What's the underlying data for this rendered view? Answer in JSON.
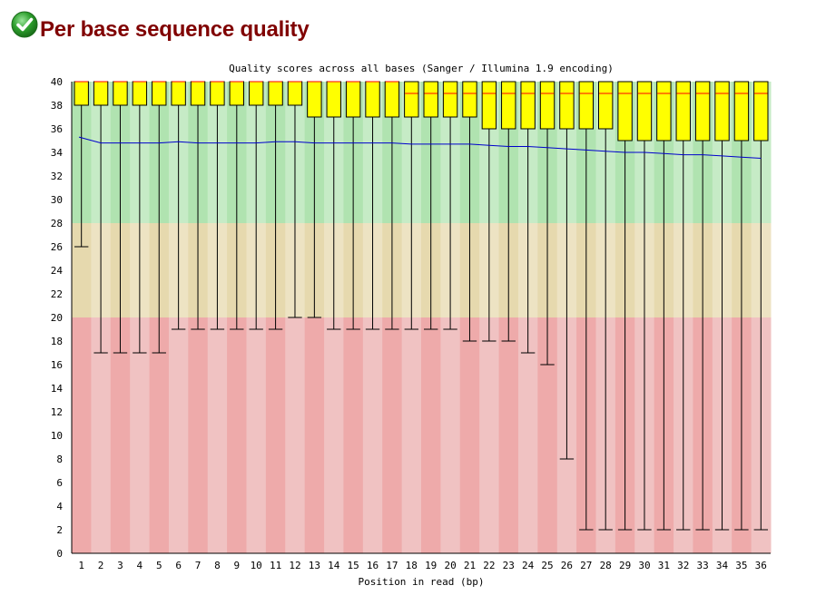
{
  "header": {
    "title": "Per base sequence quality",
    "status_icon": "pass-check-icon",
    "status_color": "#2ea02e"
  },
  "chart_data": {
    "type": "boxplot",
    "title": "Quality scores across all bases (Sanger / Illumina 1.9 encoding)",
    "xlabel": "Position in read (bp)",
    "ylabel": "",
    "ylim": [
      0,
      40
    ],
    "yticks": [
      0,
      2,
      4,
      6,
      8,
      10,
      12,
      14,
      16,
      18,
      20,
      22,
      24,
      26,
      28,
      30,
      32,
      34,
      36,
      38,
      40
    ],
    "categories": [
      "1",
      "2",
      "3",
      "4",
      "5",
      "6",
      "7",
      "8",
      "9",
      "10",
      "11",
      "12",
      "13",
      "14",
      "15",
      "16",
      "17",
      "18",
      "19",
      "20",
      "21",
      "22",
      "23",
      "24",
      "25",
      "26",
      "27",
      "28",
      "29",
      "30",
      "31",
      "32",
      "33",
      "34",
      "35",
      "36"
    ],
    "quality_bands": [
      {
        "name": "good",
        "from": 28,
        "to": 40,
        "color_a": "#b0e3b0",
        "color_b": "#c6ebc6"
      },
      {
        "name": "reasonable",
        "from": 20,
        "to": 28,
        "color_a": "#e6d9ae",
        "color_b": "#ede3c3"
      },
      {
        "name": "poor",
        "from": 0,
        "to": 20,
        "color_a": "#eeaaaa",
        "color_b": "#f0c2c2"
      }
    ],
    "series": [
      {
        "name": "10th percentile",
        "values": [
          26,
          17,
          17,
          17,
          17,
          19,
          19,
          19,
          19,
          19,
          19,
          20,
          20,
          19,
          19,
          19,
          19,
          19,
          19,
          19,
          18,
          18,
          18,
          17,
          16,
          8,
          2,
          2,
          2,
          2,
          2,
          2,
          2,
          2,
          2,
          2
        ]
      },
      {
        "name": "lower quartile",
        "values": [
          38,
          38,
          38,
          38,
          38,
          38,
          38,
          38,
          38,
          38,
          38,
          38,
          37,
          37,
          37,
          37,
          37,
          37,
          37,
          37,
          37,
          36,
          36,
          36,
          36,
          36,
          36,
          36,
          35,
          35,
          35,
          35,
          35,
          35,
          35,
          35
        ]
      },
      {
        "name": "median",
        "values": [
          40,
          40,
          40,
          40,
          40,
          40,
          40,
          40,
          40,
          40,
          40,
          40,
          40,
          40,
          40,
          40,
          40,
          39,
          39,
          39,
          39,
          39,
          39,
          39,
          39,
          39,
          39,
          39,
          39,
          39,
          39,
          39,
          39,
          39,
          39,
          39
        ]
      },
      {
        "name": "upper quartile",
        "values": [
          40,
          40,
          40,
          40,
          40,
          40,
          40,
          40,
          40,
          40,
          40,
          40,
          40,
          40,
          40,
          40,
          40,
          40,
          40,
          40,
          40,
          40,
          40,
          40,
          40,
          40,
          40,
          40,
          40,
          40,
          40,
          40,
          40,
          40,
          40,
          40
        ]
      },
      {
        "name": "90th percentile",
        "values": [
          40,
          40,
          40,
          40,
          40,
          40,
          40,
          40,
          40,
          40,
          40,
          40,
          40,
          40,
          40,
          40,
          40,
          40,
          40,
          40,
          40,
          40,
          40,
          40,
          40,
          40,
          40,
          40,
          40,
          40,
          40,
          40,
          40,
          40,
          40,
          40
        ]
      },
      {
        "name": "mean",
        "values": [
          35.3,
          34.8,
          34.8,
          34.8,
          34.8,
          34.9,
          34.8,
          34.8,
          34.8,
          34.8,
          34.9,
          34.9,
          34.8,
          34.8,
          34.8,
          34.8,
          34.8,
          34.7,
          34.7,
          34.7,
          34.7,
          34.6,
          34.5,
          34.5,
          34.4,
          34.3,
          34.2,
          34.1,
          34.0,
          34.0,
          33.9,
          33.8,
          33.8,
          33.7,
          33.6,
          33.5
        ]
      }
    ],
    "colors": {
      "box_fill": "#ffff00",
      "box_stroke": "#000000",
      "median": "#ff0000",
      "mean": "#0000cc",
      "axis": "#000000"
    }
  }
}
